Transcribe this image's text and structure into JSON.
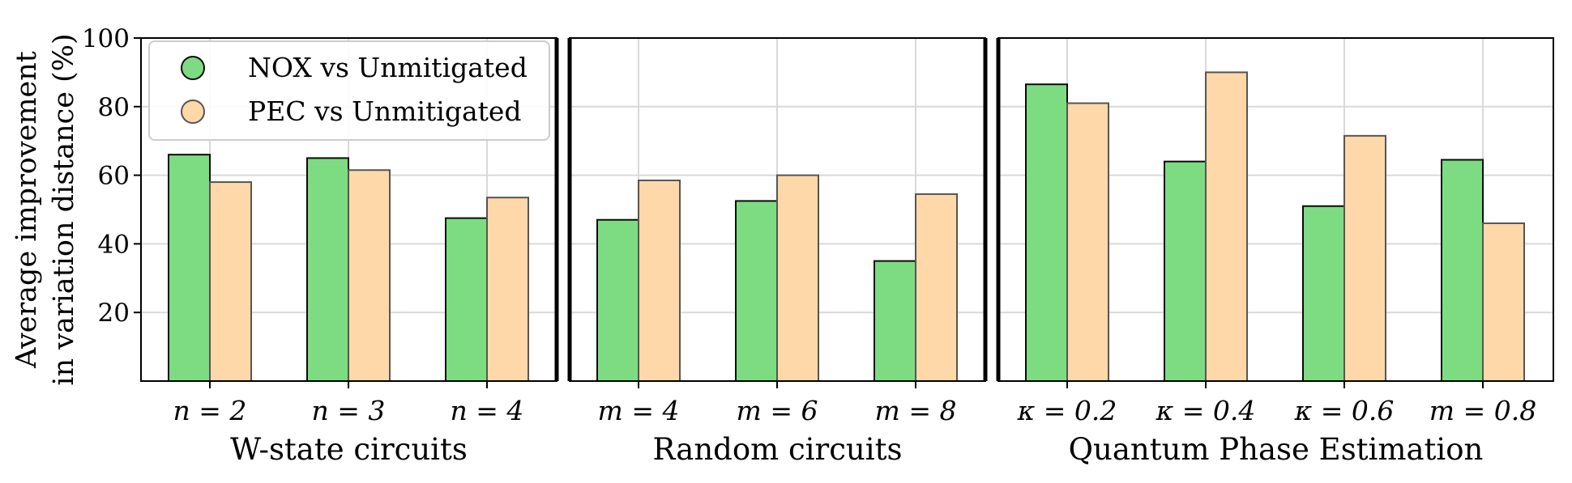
{
  "chart_data": {
    "type": "bar",
    "ylabel": [
      "Average improvement",
      "in variation distance (%)"
    ],
    "ylim": [
      0,
      100
    ],
    "yticks": [
      20,
      40,
      60,
      80,
      100
    ],
    "grid": true,
    "legend_position": "top-left",
    "series": [
      {
        "name": "NOX vs Unmitigated",
        "color": "#7ddc81"
      },
      {
        "name": "PEC vs Unmitigated",
        "color": "#fed8a8"
      }
    ],
    "groups": [
      {
        "label": "W-state circuits",
        "categories": [
          "n = 2",
          "n = 3",
          "n = 4"
        ],
        "values": [
          [
            66.0,
            65.0,
            47.5
          ],
          [
            58.0,
            61.5,
            53.5
          ]
        ]
      },
      {
        "label": "Random circuits",
        "categories": [
          "m = 4",
          "m = 6",
          "m = 8"
        ],
        "values": [
          [
            47.0,
            52.5,
            35.0
          ],
          [
            58.5,
            60.0,
            54.5
          ]
        ]
      },
      {
        "label": "Quantum Phase Estimation",
        "categories": [
          "κ = 0.2",
          "κ = 0.4",
          "κ = 0.6",
          "m = 0.8"
        ],
        "values": [
          [
            86.5,
            64.0,
            51.0,
            64.5
          ],
          [
            81.0,
            90.0,
            71.5,
            46.0
          ]
        ]
      }
    ]
  }
}
